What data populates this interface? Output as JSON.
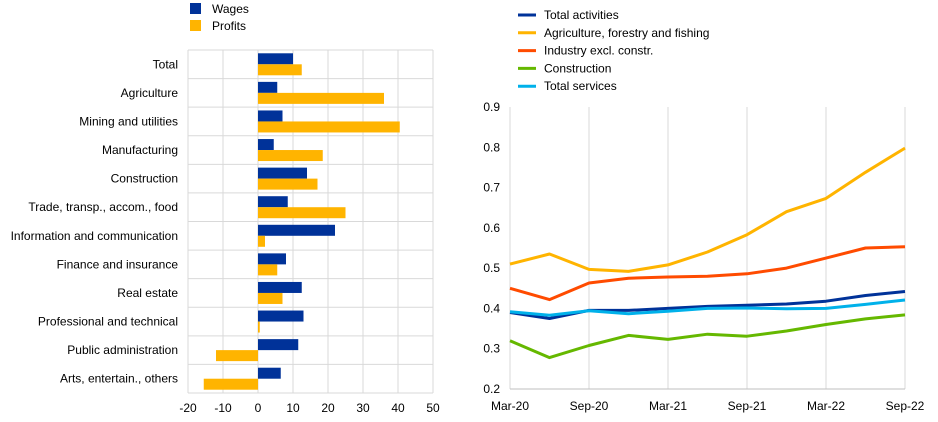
{
  "chart_data": [
    {
      "type": "bar",
      "orientation": "horizontal",
      "categories": [
        "Total",
        "Agriculture",
        "Mining and utilities",
        "Manufacturing",
        "Construction",
        "Trade, transp., accom., food",
        "Information and communication",
        "Finance and insurance",
        "Real estate",
        "Professional and technical",
        "Public administration",
        "Arts, entertain., others"
      ],
      "series": [
        {
          "name": "Wages",
          "color": "#003299",
          "values": [
            10,
            5.5,
            7,
            4.5,
            14,
            8.5,
            22,
            8,
            12.5,
            13,
            11.5,
            6.5
          ]
        },
        {
          "name": "Profits",
          "color": "#FFB400",
          "values": [
            12.5,
            36,
            40.5,
            18.5,
            17,
            25,
            2,
            5.5,
            7,
            0.5,
            -12,
            -15.5
          ]
        }
      ],
      "xlim": [
        -20,
        50
      ],
      "xticks": [
        "-20",
        "-10",
        "0",
        "10",
        "20",
        "30",
        "40",
        "50"
      ],
      "grid": "vertical",
      "legend": "top-left"
    },
    {
      "type": "line",
      "x": [
        "Mar-20",
        "Jun-20",
        "Sep-20",
        "Dec-20",
        "Mar-21",
        "Jun-21",
        "Sep-21",
        "Dec-21",
        "Mar-22",
        "Jun-22",
        "Sep-22"
      ],
      "xticks": [
        "Mar-20",
        "Sep-20",
        "Mar-21",
        "Sep-21",
        "Mar-22",
        "Sep-22"
      ],
      "series": [
        {
          "name": "Total activities",
          "color": "#003299",
          "values": [
            0.39,
            0.375,
            0.395,
            0.395,
            0.4,
            0.405,
            0.408,
            0.411,
            0.418,
            0.432,
            0.442
          ]
        },
        {
          "name": "Agriculture, forestry and fishing",
          "color": "#FFB400",
          "values": [
            0.51,
            0.535,
            0.497,
            0.492,
            0.508,
            0.54,
            0.583,
            0.64,
            0.673,
            0.738,
            0.798
          ]
        },
        {
          "name": "Industry excl. constr.",
          "color": "#FF4B00",
          "values": [
            0.45,
            0.422,
            0.463,
            0.475,
            0.478,
            0.48,
            0.486,
            0.5,
            0.525,
            0.55,
            0.553
          ]
        },
        {
          "name": "Construction",
          "color": "#65B800",
          "values": [
            0.32,
            0.278,
            0.308,
            0.333,
            0.323,
            0.336,
            0.331,
            0.344,
            0.36,
            0.374,
            0.384
          ]
        },
        {
          "name": "Total services",
          "color": "#00B1EA",
          "values": [
            0.392,
            0.383,
            0.394,
            0.387,
            0.393,
            0.4,
            0.401,
            0.399,
            0.4,
            0.41,
            0.421
          ]
        }
      ],
      "ylim": [
        0.2,
        0.9
      ],
      "yticks": [
        "0.2",
        "0.3",
        "0.4",
        "0.5",
        "0.6",
        "0.7",
        "0.8",
        "0.9"
      ],
      "grid": "vertical",
      "legend": "top-left"
    }
  ]
}
